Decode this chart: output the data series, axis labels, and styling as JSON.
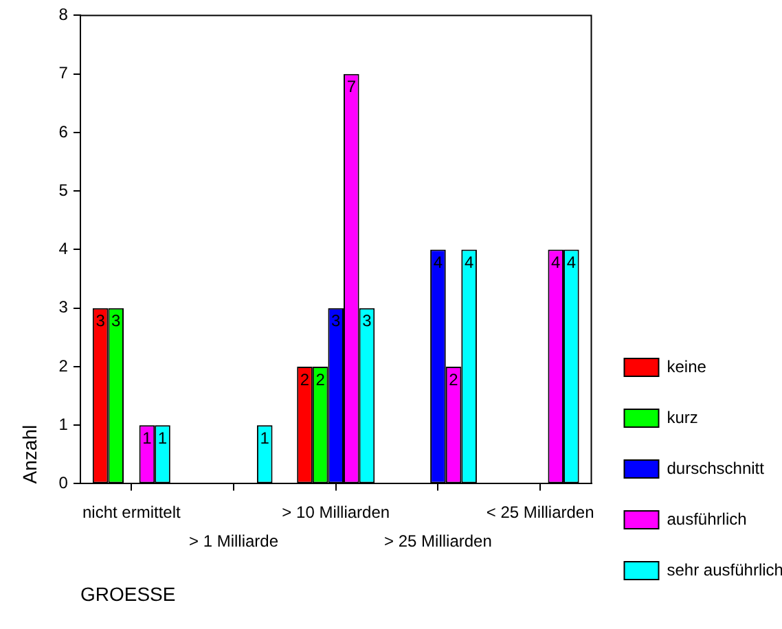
{
  "chart_data": {
    "type": "bar",
    "xlabel": "GROESSE",
    "ylabel": "Anzahl",
    "categories": [
      "nicht ermittelt",
      "> 1 Milliarde",
      "> 10 Milliarden",
      "> 25 Milliarden",
      "< 25 Milliarden"
    ],
    "series": [
      {
        "name": "keine",
        "color": "#ff0000",
        "values": [
          3,
          null,
          2,
          null,
          null
        ]
      },
      {
        "name": "kurz",
        "color": "#00ff00",
        "values": [
          3,
          null,
          2,
          null,
          null
        ]
      },
      {
        "name": "durschschnitt",
        "color": "#0000ff",
        "values": [
          null,
          null,
          3,
          4,
          null
        ]
      },
      {
        "name": "ausführlich",
        "color": "#ff00ff",
        "values": [
          1,
          null,
          7,
          2,
          4
        ]
      },
      {
        "name": "sehr ausführlich",
        "color": "#00ffff",
        "values": [
          1,
          1,
          3,
          4,
          4
        ]
      }
    ],
    "ylim": [
      0,
      8
    ],
    "yticks": [
      0,
      1,
      2,
      3,
      4,
      5,
      6,
      7,
      8
    ],
    "grid": false,
    "legend": "right",
    "data_labels": true
  }
}
